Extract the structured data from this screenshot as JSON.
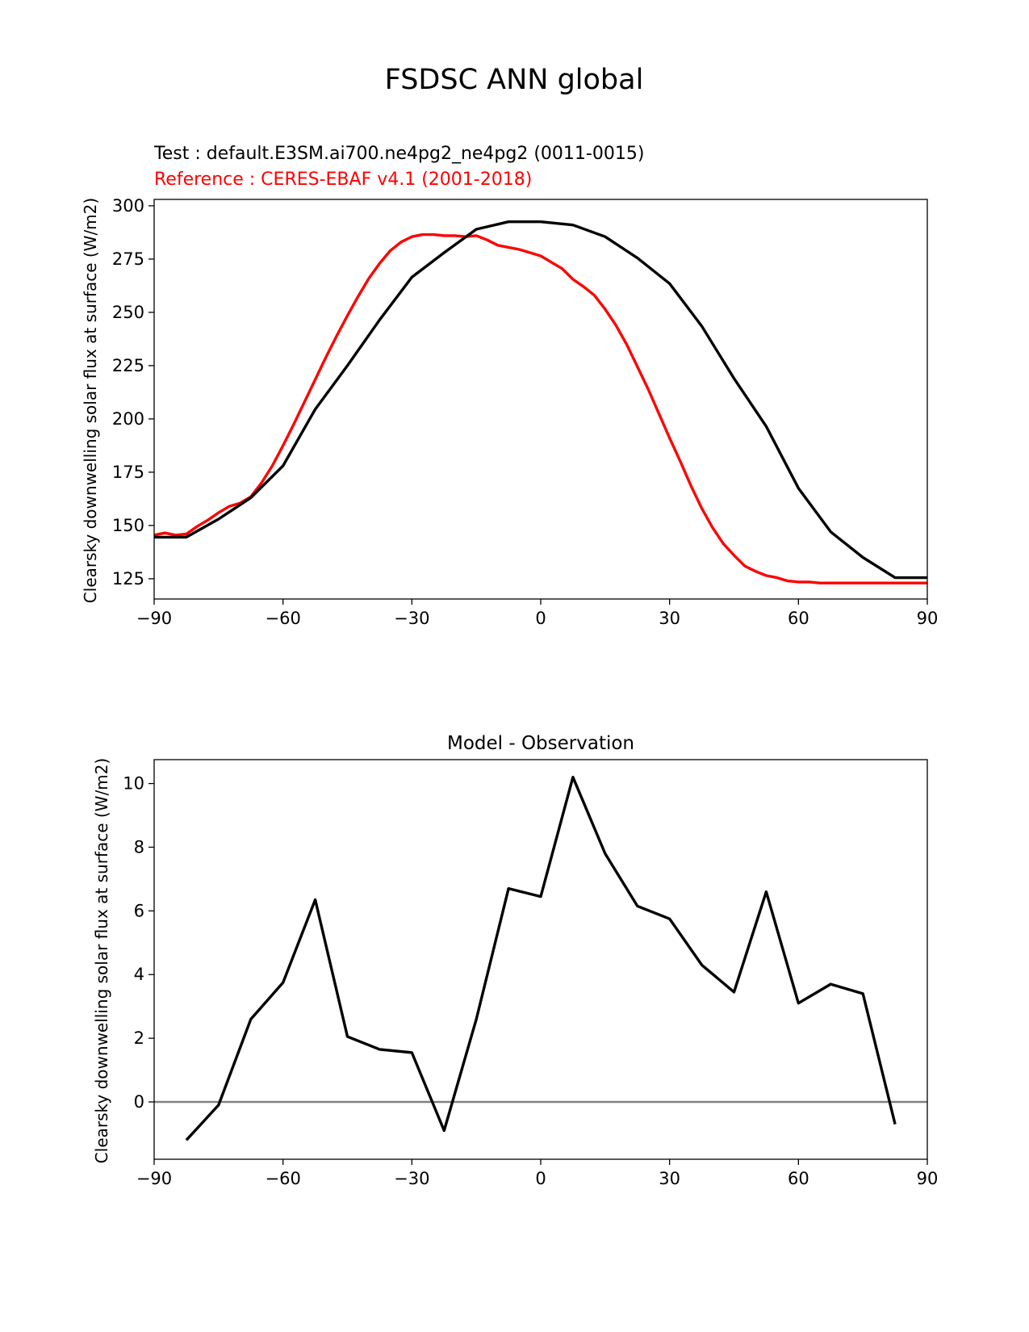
{
  "figure_title": "FSDSC ANN global",
  "colors": {
    "test": "#000000",
    "reference": "#ff0000",
    "zero_line": "#808080"
  },
  "chart_data": [
    {
      "type": "line",
      "test_label": "Test : default.E3SM.ai700.ne4pg2_ne4pg2 (0011-0015)",
      "reference_label": "Reference : CERES-EBAF v4.1 (2001-2018)",
      "ylabel": "Clearsky downwelling solar flux at surface (W/m2)",
      "xlabel": "",
      "xlim": [
        -90,
        90
      ],
      "ylim": [
        115.5,
        303
      ],
      "xticks": [
        -90,
        -60,
        -30,
        0,
        30,
        60,
        90
      ],
      "xtick_labels": [
        "−90",
        "−60",
        "−30",
        "0",
        "30",
        "60",
        "90"
      ],
      "yticks": [
        125,
        150,
        175,
        200,
        225,
        250,
        275,
        300
      ],
      "ytick_labels": [
        "125",
        "150",
        "175",
        "200",
        "225",
        "250",
        "275",
        "300"
      ],
      "series": [
        {
          "role": "test",
          "x": [
            -90,
            -82.5,
            -75,
            -67.5,
            -60,
            -52.5,
            -45,
            -37.5,
            -30,
            -22.5,
            -15,
            -7.5,
            0,
            7.5,
            15,
            22.5,
            30,
            37.5,
            45,
            52.5,
            60,
            67.5,
            75,
            82.5,
            90
          ],
          "y": [
            144.5,
            144.5,
            153,
            163,
            178,
            204.5,
            225,
            246.5,
            266.5,
            278,
            289,
            292.5,
            292.5,
            291,
            285.5,
            275.5,
            263.5,
            243.5,
            219,
            196.5,
            167.5,
            147,
            135,
            125.5,
            125.5
          ]
        },
        {
          "role": "reference",
          "x": [
            -90,
            -87.5,
            -85,
            -82.5,
            -80,
            -77.5,
            -75,
            -72.5,
            -70,
            -67.5,
            -65,
            -62.5,
            -60,
            -57.5,
            -55,
            -52.5,
            -50,
            -47.5,
            -45,
            -42.5,
            -40,
            -37.5,
            -35,
            -32.5,
            -30,
            -27.5,
            -25,
            -22.5,
            -20,
            -17.5,
            -15,
            -12.5,
            -10,
            -7.5,
            -5,
            -2.5,
            0,
            2.5,
            5,
            7.5,
            10,
            12.5,
            15,
            17.5,
            20,
            22.5,
            25,
            27.5,
            30,
            32.5,
            35,
            37.5,
            40,
            42.5,
            45,
            47.5,
            50,
            52.5,
            55,
            57.5,
            60,
            62.5,
            65,
            67.5,
            70,
            72.5,
            75,
            77.5,
            80,
            82.5,
            85,
            87.5,
            90
          ],
          "y": [
            145.5,
            146.5,
            145.5,
            146,
            149.5,
            152.5,
            156,
            159,
            160.5,
            163.5,
            170,
            178,
            187.5,
            197.5,
            208,
            218.5,
            229,
            239,
            248.5,
            257.5,
            266,
            273,
            279,
            283,
            285.5,
            286.5,
            286.5,
            286,
            286,
            285.5,
            286,
            284,
            281.5,
            280.5,
            279.5,
            278,
            276.5,
            273.5,
            270.5,
            265.5,
            262,
            258,
            251.5,
            244,
            235,
            224.5,
            214,
            202.5,
            191,
            180,
            168.5,
            158,
            149,
            141.5,
            136,
            131,
            128.5,
            126.5,
            125.5,
            124,
            123.5,
            123.5,
            123,
            123,
            123,
            123,
            123,
            123,
            123,
            123,
            123,
            123,
            123
          ]
        }
      ]
    },
    {
      "type": "line",
      "title": "Model - Observation",
      "ylabel": "Clearsky downwelling solar flux at surface (W/m2)",
      "xlabel": "",
      "xlim": [
        -90,
        90
      ],
      "ylim": [
        -1.8,
        10.75
      ],
      "xticks": [
        -90,
        -60,
        -30,
        0,
        30,
        60,
        90
      ],
      "xtick_labels": [
        "−90",
        "−60",
        "−30",
        "0",
        "30",
        "60",
        "90"
      ],
      "yticks": [
        0,
        2,
        4,
        6,
        8,
        10
      ],
      "ytick_labels": [
        "0",
        "2",
        "4",
        "6",
        "8",
        "10"
      ],
      "zero_line": 0,
      "series": [
        {
          "role": "difference",
          "x": [
            -82.5,
            -75,
            -67.5,
            -60,
            -52.5,
            -45,
            -37.5,
            -30,
            -22.5,
            -15,
            -7.5,
            0,
            7.5,
            15,
            22.5,
            30,
            37.5,
            45,
            52.5,
            60,
            67.5,
            75,
            82.5
          ],
          "y": [
            -1.2,
            -0.1,
            2.6,
            3.75,
            6.35,
            2.05,
            1.65,
            1.55,
            -0.9,
            2.6,
            6.7,
            6.45,
            10.2,
            7.8,
            6.15,
            5.75,
            4.3,
            3.45,
            6.6,
            3.1,
            3.7,
            3.4,
            -0.7
          ]
        }
      ]
    }
  ]
}
